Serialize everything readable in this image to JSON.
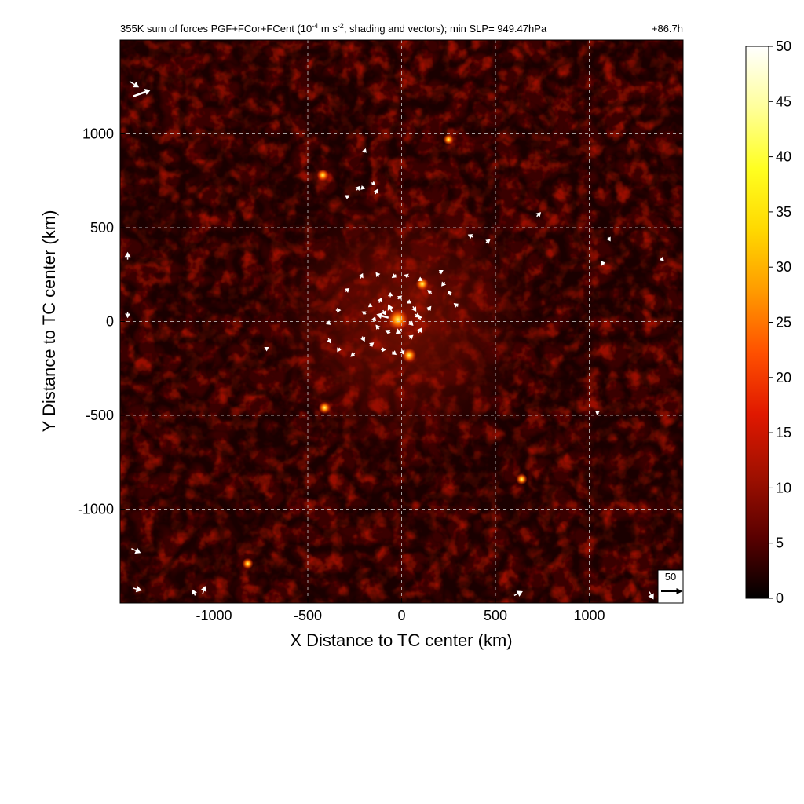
{
  "chart_data": {
    "type": "heatmap",
    "title_prefix": "355K sum of forces PGF+FCor+FCent (10",
    "title_exp1": "-4",
    "title_mid": " m s",
    "title_exp2": "-2",
    "title_suffix": ", shading and vectors); min SLP= 949.47hPa",
    "time_label": "+86.7h",
    "xlabel": "X Distance to TC center (km)",
    "ylabel": "Y Distance to TC center (km)",
    "xlim": [
      -1500,
      1500
    ],
    "ylim": [
      -1500,
      1500
    ],
    "xticks": [
      -1000,
      -500,
      0,
      500,
      1000
    ],
    "yticks": [
      -1000,
      -500,
      0,
      500,
      1000
    ],
    "xtick_labels": [
      "-1000",
      "-500",
      "0",
      "500",
      "1000"
    ],
    "ytick_labels": [
      "-1000",
      "-500",
      "0",
      "500",
      "1000"
    ],
    "grid": true,
    "colorbar": {
      "min": 0,
      "max": 50,
      "ticks": [
        0,
        5,
        10,
        15,
        20,
        25,
        30,
        35,
        40,
        45,
        50
      ],
      "tick_labels": [
        "0",
        "5",
        "10",
        "15",
        "20",
        "25",
        "30",
        "35",
        "40",
        "45",
        "50"
      ],
      "colormap": [
        "#000000",
        "#5a0000",
        "#a01000",
        "#e01800",
        "#ff5000",
        "#ff9a00",
        "#ffd800",
        "#ffff20",
        "#ffff9a",
        "#ffffff"
      ]
    },
    "reference_vector": {
      "value": 50,
      "label": "50"
    },
    "hotspots": [
      {
        "x": -20,
        "y": 10,
        "value": 30
      },
      {
        "x": 40,
        "y": -180,
        "value": 18
      },
      {
        "x": 110,
        "y": 200,
        "value": 15
      },
      {
        "x": -410,
        "y": -460,
        "value": 14
      },
      {
        "x": -420,
        "y": 780,
        "value": 13
      },
      {
        "x": -820,
        "y": -1290,
        "value": 12
      },
      {
        "x": 640,
        "y": -840,
        "value": 12
      },
      {
        "x": 250,
        "y": 970,
        "value": 11
      }
    ],
    "vectors": [
      {
        "x": -70,
        "y": 20,
        "u": -28,
        "v": 8
      },
      {
        "x": -50,
        "y": 50,
        "u": -10,
        "v": 18
      },
      {
        "x": -100,
        "y": 60,
        "u": 8,
        "v": -12
      },
      {
        "x": -120,
        "y": 100,
        "u": 6,
        "v": 12
      },
      {
        "x": -160,
        "y": 90,
        "u": -8,
        "v": -6
      },
      {
        "x": -60,
        "y": 130,
        "u": 0,
        "v": 12
      },
      {
        "x": -20,
        "y": 120,
        "u": 10,
        "v": 8
      },
      {
        "x": 30,
        "y": 110,
        "u": 10,
        "v": -6
      },
      {
        "x": 60,
        "y": 80,
        "u": 8,
        "v": -12
      },
      {
        "x": 70,
        "y": 40,
        "u": 12,
        "v": -8
      },
      {
        "x": 40,
        "y": 0,
        "u": 10,
        "v": -10
      },
      {
        "x": 0,
        "y": -40,
        "u": -14,
        "v": -12
      },
      {
        "x": -60,
        "y": -60,
        "u": -12,
        "v": 6
      },
      {
        "x": -120,
        "y": -40,
        "u": -8,
        "v": 10
      },
      {
        "x": -150,
        "y": 0,
        "u": 4,
        "v": 12
      },
      {
        "x": -190,
        "y": 40,
        "u": -10,
        "v": 6
      },
      {
        "x": -210,
        "y": -80,
        "u": 6,
        "v": -12
      },
      {
        "x": -170,
        "y": -130,
        "u": 10,
        "v": 8
      },
      {
        "x": -110,
        "y": -150,
        "u": 12,
        "v": 0
      },
      {
        "x": -50,
        "y": -160,
        "u": 10,
        "v": -8
      },
      {
        "x": 0,
        "y": -150,
        "u": 6,
        "v": -12
      },
      {
        "x": 40,
        "y": -90,
        "u": 10,
        "v": 8
      },
      {
        "x": 90,
        "y": -60,
        "u": 8,
        "v": 12
      },
      {
        "x": 100,
        "y": 10,
        "u": -4,
        "v": 12
      },
      {
        "x": 140,
        "y": 60,
        "u": 8,
        "v": 10
      },
      {
        "x": 160,
        "y": 150,
        "u": -10,
        "v": 8
      },
      {
        "x": 110,
        "y": 230,
        "u": -10,
        "v": -6
      },
      {
        "x": 40,
        "y": 240,
        "u": -12,
        "v": 4
      },
      {
        "x": -30,
        "y": 250,
        "u": -10,
        "v": -8
      },
      {
        "x": -120,
        "y": 240,
        "u": -8,
        "v": 10
      },
      {
        "x": -220,
        "y": 230,
        "u": 6,
        "v": 12
      },
      {
        "x": -300,
        "y": 160,
        "u": 10,
        "v": 8
      },
      {
        "x": -350,
        "y": 60,
        "u": 12,
        "v": 0
      },
      {
        "x": -400,
        "y": 0,
        "u": 10,
        "v": -8
      },
      {
        "x": -390,
        "y": -90,
        "u": 6,
        "v": -12
      },
      {
        "x": -330,
        "y": -140,
        "u": -6,
        "v": -10
      },
      {
        "x": -250,
        "y": -170,
        "u": -10,
        "v": -8
      },
      {
        "x": 230,
        "y": 210,
        "u": -8,
        "v": -10
      },
      {
        "x": 260,
        "y": 140,
        "u": -6,
        "v": 12
      },
      {
        "x": 300,
        "y": 80,
        "u": -10,
        "v": 8
      },
      {
        "x": 200,
        "y": 260,
        "u": 10,
        "v": 6
      },
      {
        "x": -280,
        "y": 660,
        "u": -10,
        "v": 6
      },
      {
        "x": -240,
        "y": 700,
        "u": 8,
        "v": 10
      },
      {
        "x": -200,
        "y": 720,
        "u": -8,
        "v": -8
      },
      {
        "x": -160,
        "y": 740,
        "u": 10,
        "v": -6
      },
      {
        "x": -140,
        "y": 680,
        "u": 6,
        "v": 12
      },
      {
        "x": -200,
        "y": 900,
        "u": 4,
        "v": 10
      },
      {
        "x": 380,
        "y": 450,
        "u": -12,
        "v": 6
      },
      {
        "x": 450,
        "y": 420,
        "u": 10,
        "v": 8
      },
      {
        "x": 720,
        "y": 560,
        "u": 10,
        "v": 10
      },
      {
        "x": 1100,
        "y": 450,
        "u": 6,
        "v": -10
      },
      {
        "x": 1380,
        "y": 340,
        "u": 8,
        "v": -8
      },
      {
        "x": 1080,
        "y": 300,
        "u": -8,
        "v": 10
      },
      {
        "x": -730,
        "y": -150,
        "u": 10,
        "v": 6
      },
      {
        "x": -1430,
        "y": 1200,
        "u": 40,
        "v": 15
      },
      {
        "x": -1450,
        "y": 1280,
        "u": 22,
        "v": -14
      },
      {
        "x": -1460,
        "y": 330,
        "u": 0,
        "v": 18
      },
      {
        "x": -1460,
        "y": 50,
        "u": 0,
        "v": -14
      },
      {
        "x": -1440,
        "y": -1210,
        "u": 22,
        "v": -10
      },
      {
        "x": -1430,
        "y": -1420,
        "u": 20,
        "v": -6
      },
      {
        "x": -1060,
        "y": -1450,
        "u": 6,
        "v": 18
      },
      {
        "x": -1100,
        "y": -1460,
        "u": -6,
        "v": 14
      },
      {
        "x": 600,
        "y": -1460,
        "u": 20,
        "v": 10
      },
      {
        "x": 1320,
        "y": -1440,
        "u": 10,
        "v": -18
      },
      {
        "x": 1050,
        "y": -490,
        "u": -8,
        "v": 6
      }
    ]
  }
}
